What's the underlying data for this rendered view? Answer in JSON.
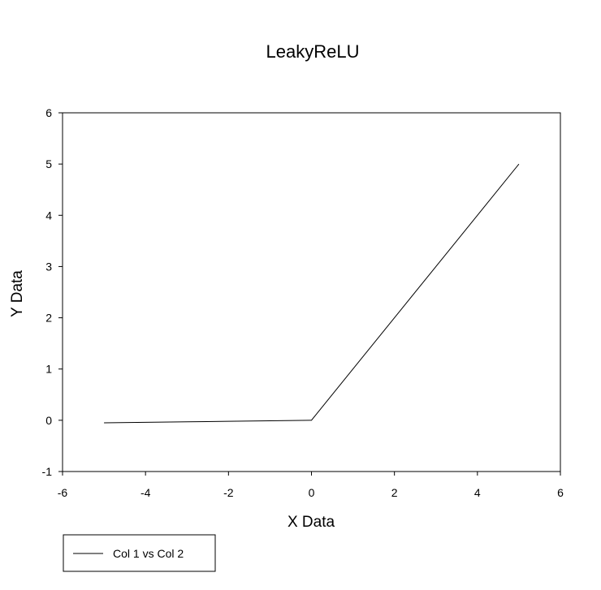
{
  "chart_data": {
    "type": "line",
    "title": "LeakyReLU",
    "xlabel": "X Data",
    "ylabel": "Y Data",
    "xlim": [
      -6,
      6
    ],
    "ylim": [
      -1,
      6
    ],
    "xticks": [
      -6,
      -4,
      -2,
      0,
      2,
      4,
      6
    ],
    "yticks": [
      -1,
      0,
      1,
      2,
      3,
      4,
      5,
      6
    ],
    "grid": false,
    "legend_position": "bottom-left",
    "series": [
      {
        "name": "Col 1 vs Col 2",
        "color": "#000000",
        "x": [
          -5,
          -4,
          -3,
          -2,
          -1,
          0,
          1,
          2,
          3,
          4,
          5
        ],
        "y": [
          -0.05,
          -0.04,
          -0.03,
          -0.02,
          -0.01,
          0,
          1,
          2,
          3,
          4,
          5
        ]
      }
    ]
  }
}
